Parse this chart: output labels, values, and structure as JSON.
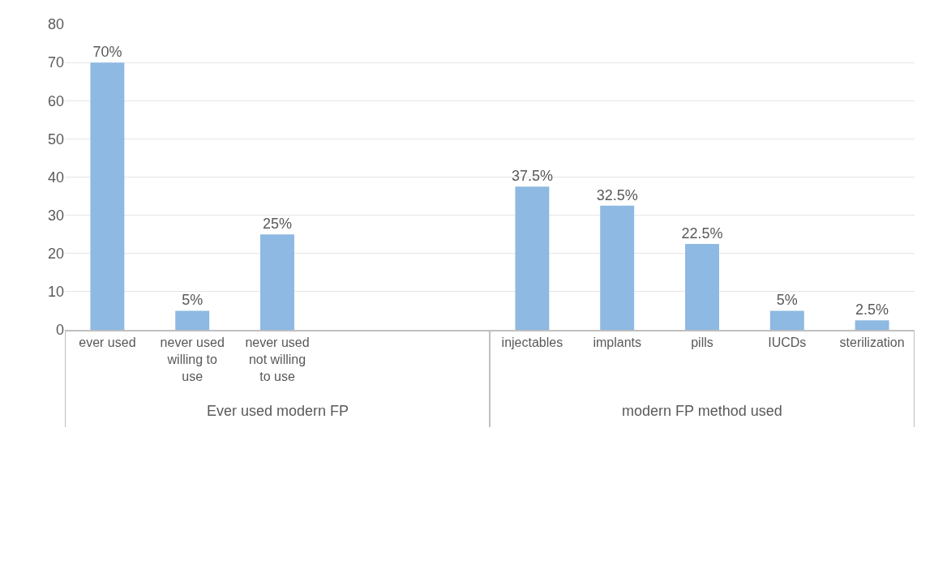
{
  "chart_data": {
    "type": "bar",
    "categories": [
      "ever used",
      "never used willing to use",
      "never used not willing to use",
      null,
      null,
      "injectables",
      "implants",
      "pills",
      "IUCDs",
      "sterilization"
    ],
    "values": [
      70,
      5,
      25,
      null,
      null,
      37.5,
      32.5,
      22.5,
      5,
      2.5
    ],
    "value_labels": [
      "70%",
      "5%",
      "25%",
      null,
      null,
      "37.5%",
      "32.5%",
      "22.5%",
      "5%",
      "2.5%"
    ],
    "color": "#8db9e2",
    "ylim": [
      0,
      80
    ],
    "yticks": [
      0,
      10,
      20,
      30,
      40,
      50,
      60,
      70,
      80
    ],
    "grid": "y",
    "annotations": [
      "Ever used modern FP",
      "modern FP method used"
    ]
  }
}
